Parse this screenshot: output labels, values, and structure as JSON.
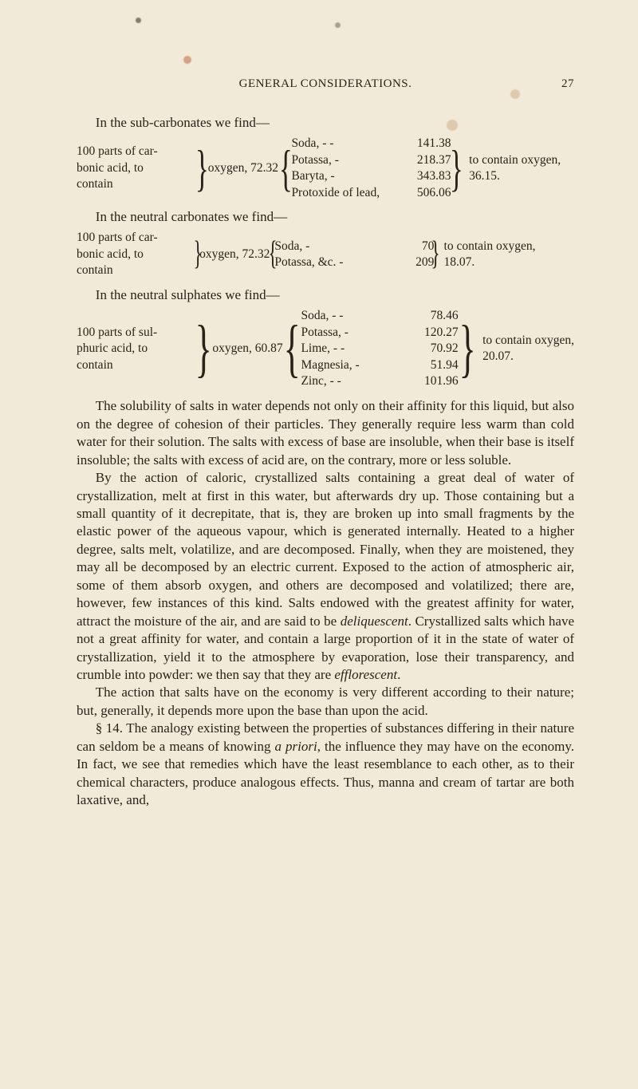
{
  "running_head": {
    "title": "GENERAL CONSIDERATIONS.",
    "page_number": "27"
  },
  "line1": "In the sub-carbonates we find—",
  "formula1": {
    "left_lines": [
      "100 parts of car-",
      "bonic acid, to",
      "contain"
    ],
    "mid": "oxygen, 72.32",
    "items": [
      "Soda,  -   -",
      "Potassa,   -",
      "Baryta,    -",
      "Protoxide of lead,"
    ],
    "vals": [
      "141.38",
      "218.37",
      "343.83",
      "506.06"
    ],
    "right_lines": [
      "to contain oxygen,",
      "36.15."
    ]
  },
  "line2": "In the neutral carbonates we find—",
  "formula2": {
    "left_lines": [
      "100 parts of car-",
      "bonic acid, to",
      "contain"
    ],
    "mid": "oxygen, 72.32",
    "items": [
      "Soda,        -",
      "Potassa, &c. -"
    ],
    "vals": [
      "70",
      "209"
    ],
    "right_lines": [
      "to contain oxygen,",
      "18.07."
    ]
  },
  "line3": "In the neutral sulphates we find—",
  "formula3": {
    "left_lines": [
      "100 parts of sul-",
      "phuric acid, to",
      "contain"
    ],
    "mid": "oxygen, 60.87",
    "items": [
      "Soda,  -   -",
      "Potassa,   -",
      "Lime,  -   -",
      "Magnesia,  -",
      "Zinc,  -   -"
    ],
    "vals": [
      "78.46",
      "120.27",
      "70.92",
      "51.94",
      "101.96"
    ],
    "right_lines": [
      "to contain oxygen,",
      "20.07."
    ]
  },
  "paragraphs": {
    "p1": "The solubility of salts in water depends not only on their affinity for this liquid, but also on the degree of cohesion of their particles. They generally require less warm than cold water for their solution. The salts with excess of base are insoluble, when their base is itself insoluble; the salts with excess of acid are, on the contrary, more or less soluble.",
    "p2": "By the action of caloric, crystallized salts containing a great deal of water of crystallization, melt at first in this water, but afterwards dry up. Those containing but a small quantity of it decrepitate, that is, they are broken up into small fragments by the elastic power of the aqueous vapour, which is generated internally. Heated to a higher degree, salts melt, volatilize, and are decomposed. Finally, when they are moistened, they may all be decomposed by an electric current. Exposed to the action of atmospheric air, some of them absorb oxygen, and others are decomposed and volatilized; there are, however, few instances of this kind. Salts endowed with the greatest affinity for water, attract the moisture of the air, and are said to be ",
    "p2_em1": "deliquescent",
    "p2b": ". Crystallized salts which have not a great affinity for water, and contain a large proportion of it in the state of water of crystallization, yield it to the atmosphere by evaporation, lose their transparency, and crumble into powder: we then say that they are ",
    "p2_em2": "efflorescent",
    "p2c": ".",
    "p3": "The action that salts have on the economy is very different according to their nature; but, generally, it depends more upon the base than upon the acid.",
    "p4a": "§ 14. The analogy existing between the properties of substances differing in their nature can seldom be a means of knowing ",
    "p4_em": "a priori",
    "p4b": ", the influence they may have on the economy. In fact, we see that remedies which have the least resemblance to each other, as to their chemical characters, produce analogous effects. Thus, manna and cream of tartar are both laxative, and,"
  }
}
